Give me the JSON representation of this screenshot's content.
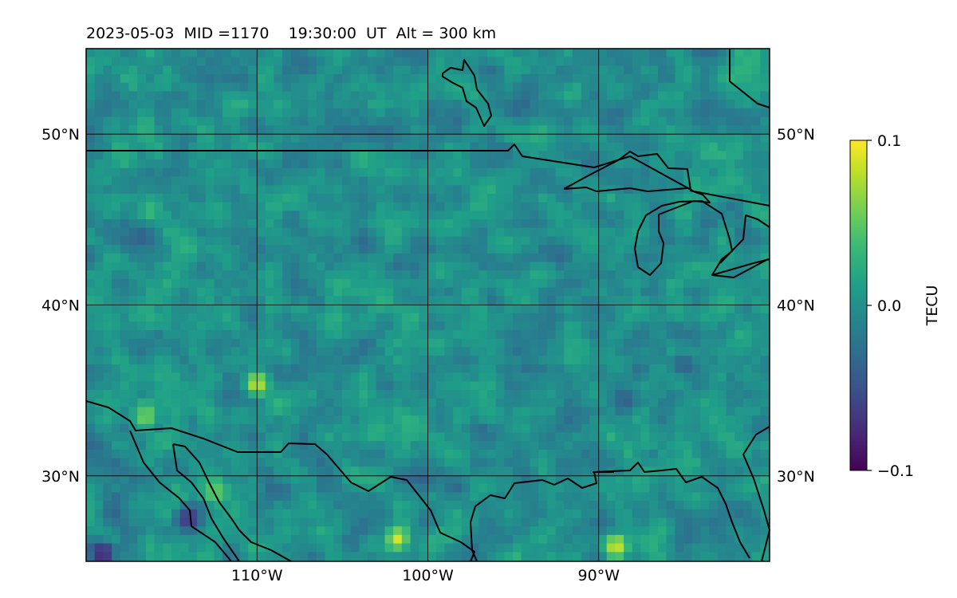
{
  "chart_data": {
    "type": "heatmap",
    "title": "2023-05-03  MID =1170    19:30:00  UT  Alt = 300 km",
    "xlim": [
      -120,
      -80
    ],
    "ylim": [
      25,
      55
    ],
    "x_ticks": [
      -110,
      -100,
      -90
    ],
    "x_tick_labels": [
      "110°W",
      "100°W",
      "90°W"
    ],
    "y_ticks": [
      30,
      40,
      50
    ],
    "y_tick_labels": [
      "30°N",
      "40°N",
      "50°N"
    ],
    "grid": true,
    "grid_step": 10,
    "colormap": "viridis",
    "colorbar": {
      "label": "TECU",
      "vmin": -0.1,
      "vmax": 0.1,
      "tick_labels": [
        "0.1",
        "0.0",
        "−0.1"
      ],
      "ticks": [
        0.1,
        0.0,
        -0.1
      ],
      "placement": "right"
    },
    "field_note_mean": 0.0,
    "highlights": [
      {
        "lon": -119.0,
        "lat": 25.5,
        "value": -0.1
      },
      {
        "lon": -114.0,
        "lat": 27.5,
        "value": -0.08
      },
      {
        "lon": -89.0,
        "lat": 25.9,
        "value": 0.1
      },
      {
        "lon": -101.8,
        "lat": 26.3,
        "value": 0.09
      },
      {
        "lon": -116.5,
        "lat": 33.5,
        "value": 0.07
      },
      {
        "lon": -112.5,
        "lat": 29.0,
        "value": 0.06
      },
      {
        "lon": -85.0,
        "lat": 36.5,
        "value": -0.05
      },
      {
        "lon": -88.5,
        "lat": 34.5,
        "value": -0.05
      },
      {
        "lon": -110.0,
        "lat": 35.4,
        "value": 0.1
      }
    ],
    "coastline_color": "#000000",
    "grid_color": "#000000"
  }
}
